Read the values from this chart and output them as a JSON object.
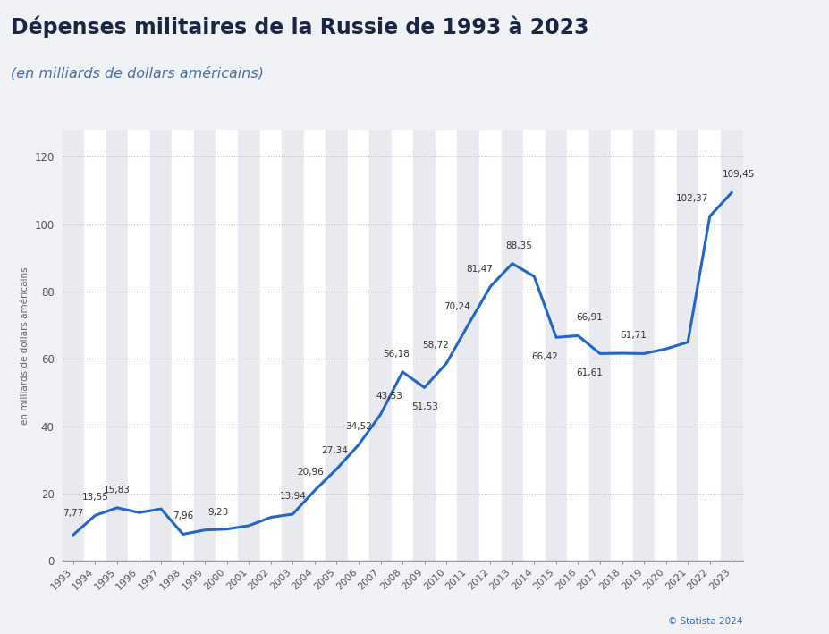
{
  "title": "Dépenses militaires de la Russie de 1993 à 2023",
  "subtitle": "(en milliards de dollars américains)",
  "ylabel": "en milliards de dollars américains",
  "copyright": "© Statista 2024",
  "years": [
    1993,
    1994,
    1995,
    1996,
    1997,
    1998,
    1999,
    2000,
    2001,
    2002,
    2003,
    2004,
    2005,
    2006,
    2007,
    2008,
    2009,
    2010,
    2011,
    2012,
    2013,
    2014,
    2015,
    2016,
    2017,
    2018,
    2019,
    2020,
    2021,
    2022,
    2023
  ],
  "values": [
    7.77,
    13.55,
    15.83,
    14.4,
    15.5,
    7.96,
    9.23,
    9.5,
    10.5,
    13.0,
    13.94,
    20.96,
    27.34,
    34.52,
    43.53,
    56.18,
    51.53,
    58.72,
    70.24,
    81.47,
    88.35,
    84.5,
    66.42,
    66.91,
    61.61,
    61.71,
    61.61,
    63.0,
    65.0,
    102.37,
    109.45
  ],
  "line_color": "#2266cc",
  "line_width": 2.2,
  "bg_color": "#f0f2f5",
  "chart_bg_color": "#ffffff",
  "title_color": "#1a2744",
  "subtitle_color": "#4a6fa5",
  "ylabel_color": "#666666",
  "grid_color": "#bbbbbb",
  "stripe_color": "#e8eaf0",
  "yticks": [
    0,
    20,
    40,
    60,
    80,
    100,
    120
  ],
  "ylim": [
    0,
    128
  ],
  "ann_data": {
    "1993": 7.77,
    "1994": 13.55,
    "1995": 15.83,
    "1998": 7.96,
    "1999": 9.23,
    "2003": 13.94,
    "2004": 20.96,
    "2005": 27.34,
    "2006": 34.52,
    "2007": 43.53,
    "2008": 56.18,
    "2009": 51.53,
    "2010": 58.72,
    "2011": 70.24,
    "2012": 81.47,
    "2013": 88.35,
    "2015": 66.42,
    "2016": 66.91,
    "2017": 61.61,
    "2018": 61.71,
    "2022": 102.37,
    "2023": 109.45
  }
}
